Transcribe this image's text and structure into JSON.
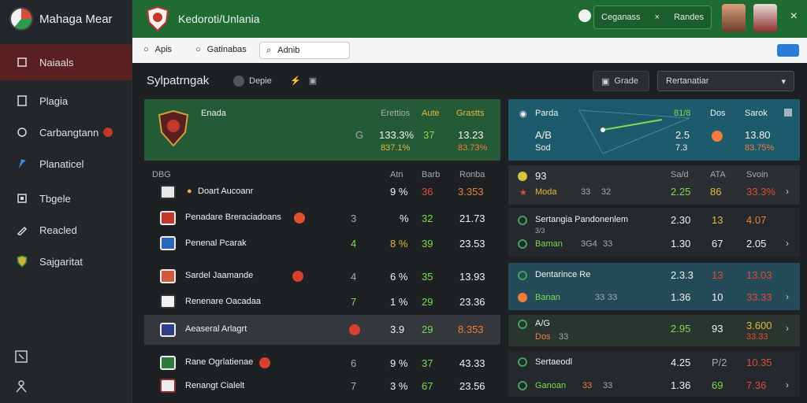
{
  "brand": {
    "name": "Mahaga Mear"
  },
  "sidebar": {
    "items": [
      {
        "label": "Naiaals"
      },
      {
        "label": "Plagia"
      },
      {
        "label": "Carbangtann"
      },
      {
        "label": "Planaticel"
      },
      {
        "label": "Tbgele"
      },
      {
        "label": "Reacled"
      },
      {
        "label": "Sajgaritat"
      }
    ]
  },
  "topbar": {
    "title": "Kedoroti/Unlania",
    "panel_left": "Ceganass",
    "panel_sep": "×",
    "panel_right": "Randes",
    "close": "×"
  },
  "filters": {
    "item1": "Apis",
    "item2": "Gatinabas",
    "search_value": "Adnib",
    "toggle": ""
  },
  "section": {
    "title": "Sylpatrngak",
    "pill": "Depie",
    "button": "Grade",
    "select_value": "Rertanatiar"
  },
  "featured_left": {
    "name": "Enada",
    "headers": [
      "Erettios",
      "Aute",
      "Grastts"
    ],
    "marker": "G",
    "v1": "133.3%",
    "v1b": "837.1%",
    "v2": "37",
    "v3": "13.23",
    "v3b": "83.73%"
  },
  "featured_right": {
    "name": "Parda",
    "line1": "A/B",
    "line2": "Sod",
    "headers": [
      "81/8",
      "Dos",
      "Sarok"
    ],
    "v1": "2.5",
    "v1b": "7.3",
    "v3": "13.80",
    "v3b": "83.75%"
  },
  "table_left": {
    "headers": [
      "DBG",
      "Atn",
      "Barb",
      "Ronba"
    ],
    "rows": [
      {
        "name": "Doart Aucoanr",
        "c": "",
        "a": "9 %",
        "b": "36",
        "d": "3.353"
      },
      {
        "name": "Penadare Breraciadoans",
        "c": "3",
        "a": "%",
        "b": "32",
        "d": "21.73"
      },
      {
        "name": "Penenal Pcarak",
        "c": "4",
        "a": "8 %",
        "b": "39",
        "d": "23.53"
      },
      {
        "name": "Sardel Jaamande",
        "c": "4",
        "a": "6 %",
        "b": "35",
        "d": "13.93"
      },
      {
        "name": "Renenare Oacadaa",
        "c": "7",
        "a": "1 %",
        "b": "29",
        "d": "23.36"
      },
      {
        "name": "Aeaseral Arlagrt",
        "c": "",
        "a": "3.9",
        "b": "29",
        "d": "8.353"
      },
      {
        "name": "Rane Ogrlatienae",
        "c": "6",
        "a": "9 %",
        "b": "37",
        "d": "43.33"
      },
      {
        "name": "Renangt Cialelt",
        "c": "7",
        "a": "3 %",
        "b": "67",
        "d": "23.56"
      }
    ]
  },
  "table_right": {
    "headers": [
      "Sa/d",
      "ATA",
      "Svoin"
    ],
    "top": {
      "name": "93",
      "sub": "Moda",
      "s1": "33",
      "s2": "32",
      "v1": "2.25",
      "v2": "86",
      "v3": "33.3%"
    },
    "groups": [
      {
        "title": "Sertangia Pandonenlem",
        "sub": "Baman",
        "tag": "3/3",
        "s1": "3G4",
        "s2": "33",
        "v1": "2.30",
        "v2": "13",
        "v3": "4.07",
        "v1b": "1.30",
        "v2b": "67",
        "v3b": "2.05"
      },
      {
        "title": "Dentarince Re",
        "sub": "Banan",
        "tag": "",
        "s1": "33",
        "s2": "33",
        "v1": "2.3.3",
        "v2": "13",
        "v3": "13.03",
        "v1b": "1.36",
        "v2b": "10",
        "v3b": "33.33"
      },
      {
        "title": "A/G",
        "sub": "Dos",
        "tag": "",
        "s1": "33",
        "s2": "33",
        "v1": "2.95",
        "v2": "93",
        "v3": "3.600",
        "v1b": "",
        "v2b": "",
        "v3b": "33.33"
      },
      {
        "title": "Sertaeodl",
        "sub": "Ganoan",
        "tag": "",
        "s1": "33",
        "s2": "33",
        "v1": "4.25",
        "v2": "P/2",
        "v3": "10.35",
        "v1b": "1.36",
        "v2b": "69",
        "v3b": "7.36"
      }
    ]
  },
  "colors": {
    "green_top": "#1f6b33",
    "accent_green": "#7ddc4f",
    "accent_red": "#e24a3a",
    "sidebar_active": "#5a1f21"
  }
}
